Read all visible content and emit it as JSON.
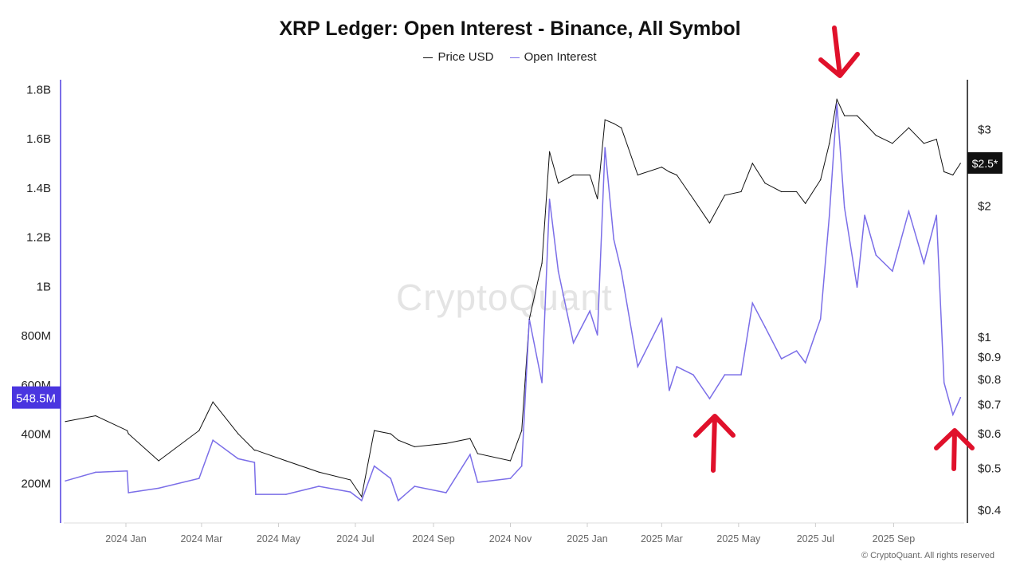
{
  "chart_data": {
    "type": "line",
    "title": "XRP Ledger: Open Interest - Binance, All Symbol",
    "legend": [
      "Price USD",
      "Open Interest"
    ],
    "legend_placement": "top-center",
    "x_ticks": [
      "2024 Jan",
      "2024 Mar",
      "2024 May",
      "2024 Jul",
      "2024 Sep",
      "2024 Nov",
      "2025 Jan",
      "2025 Mar",
      "2025 May",
      "2025 Jul",
      "2025 Sep"
    ],
    "y_left_ticks": [
      "200M",
      "400M",
      "600M",
      "800M",
      "1B",
      "1.2B",
      "1.4B",
      "1.6B",
      "1.8B"
    ],
    "y_right_ticks": [
      "$0.4",
      "$0.5",
      "$0.6",
      "$0.7",
      "$0.8",
      "$0.9",
      "$1",
      "$2",
      "$3"
    ],
    "y_right_scale": "log",
    "ylim_left_millions": [
      0,
      1800
    ],
    "ylim_right_usd": [
      0.4,
      3.7
    ],
    "grid": false,
    "current_oi_label": "548.5M",
    "current_price_label": "$2.5*",
    "colors": {
      "price": "#111111",
      "open_interest": "#7b6ee8",
      "oi_badge": "#4a35e0",
      "annotation_arrows": "#e0112b"
    },
    "x": [
      "2023-11-14",
      "2023-12-08",
      "2024-01-02",
      "2024-01-03",
      "2024-01-27",
      "2024-02-28",
      "2024-03-10",
      "2024-03-30",
      "2024-04-12",
      "2024-04-13",
      "2024-05-07",
      "2024-06-02",
      "2024-06-27",
      "2024-07-06",
      "2024-07-16",
      "2024-07-29",
      "2024-08-04",
      "2024-08-17",
      "2024-09-11",
      "2024-09-30",
      "2024-10-06",
      "2024-11-01",
      "2024-11-10",
      "2024-11-16",
      "2024-11-26",
      "2024-12-02",
      "2024-12-09",
      "2024-12-21",
      "2025-01-03",
      "2025-01-09",
      "2025-01-15",
      "2025-01-22",
      "2025-01-28",
      "2025-02-10",
      "2025-03-01",
      "2025-03-07",
      "2025-03-13",
      "2025-03-26",
      "2025-04-08",
      "2025-04-20",
      "2025-05-03",
      "2025-05-12",
      "2025-05-22",
      "2025-06-04",
      "2025-06-16",
      "2025-06-23",
      "2025-07-05",
      "2025-07-12",
      "2025-07-18",
      "2025-07-24",
      "2025-08-03",
      "2025-08-09",
      "2025-08-18",
      "2025-08-31",
      "2025-09-13",
      "2025-09-25",
      "2025-10-05",
      "2025-10-11",
      "2025-10-18",
      "2025-10-24"
    ],
    "series": [
      {
        "name": "Open Interest",
        "unit": "M",
        "axis": "left",
        "values": [
          210,
          245,
          250,
          162,
          180,
          220,
          375,
          300,
          285,
          155,
          155,
          188,
          165,
          130,
          270,
          220,
          130,
          188,
          162,
          317,
          204,
          220,
          270,
          868,
          609,
          1354,
          1062,
          771,
          900,
          803,
          1564,
          1192,
          1062,
          674,
          868,
          577,
          674,
          641,
          544,
          641,
          641,
          932,
          835,
          706,
          738,
          690,
          868,
          1289,
          1742,
          1321,
          997,
          1289,
          1127,
          1062,
          1305,
          1094,
          1289,
          609,
          479,
          548.5
        ]
      },
      {
        "name": "Price USD",
        "unit": "USD",
        "axis": "right",
        "values": [
          0.64,
          0.66,
          0.61,
          0.6,
          0.52,
          0.61,
          0.71,
          0.6,
          0.55,
          0.55,
          0.52,
          0.49,
          0.47,
          0.43,
          0.61,
          0.6,
          0.58,
          0.56,
          0.57,
          0.585,
          0.54,
          0.52,
          0.61,
          1.1,
          1.48,
          2.67,
          2.26,
          2.36,
          2.36,
          2.08,
          3.16,
          3.1,
          3.03,
          2.36,
          2.46,
          2.4,
          2.36,
          2.08,
          1.83,
          2.12,
          2.16,
          2.51,
          2.26,
          2.16,
          2.16,
          2.03,
          2.3,
          2.79,
          3.52,
          3.23,
          3.23,
          3.1,
          2.91,
          2.79,
          3.03,
          2.79,
          2.85,
          2.4,
          2.36,
          2.51
        ]
      }
    ]
  },
  "watermark": "CryptoQuant",
  "footer": "© CryptoQuant. All rights reserved"
}
